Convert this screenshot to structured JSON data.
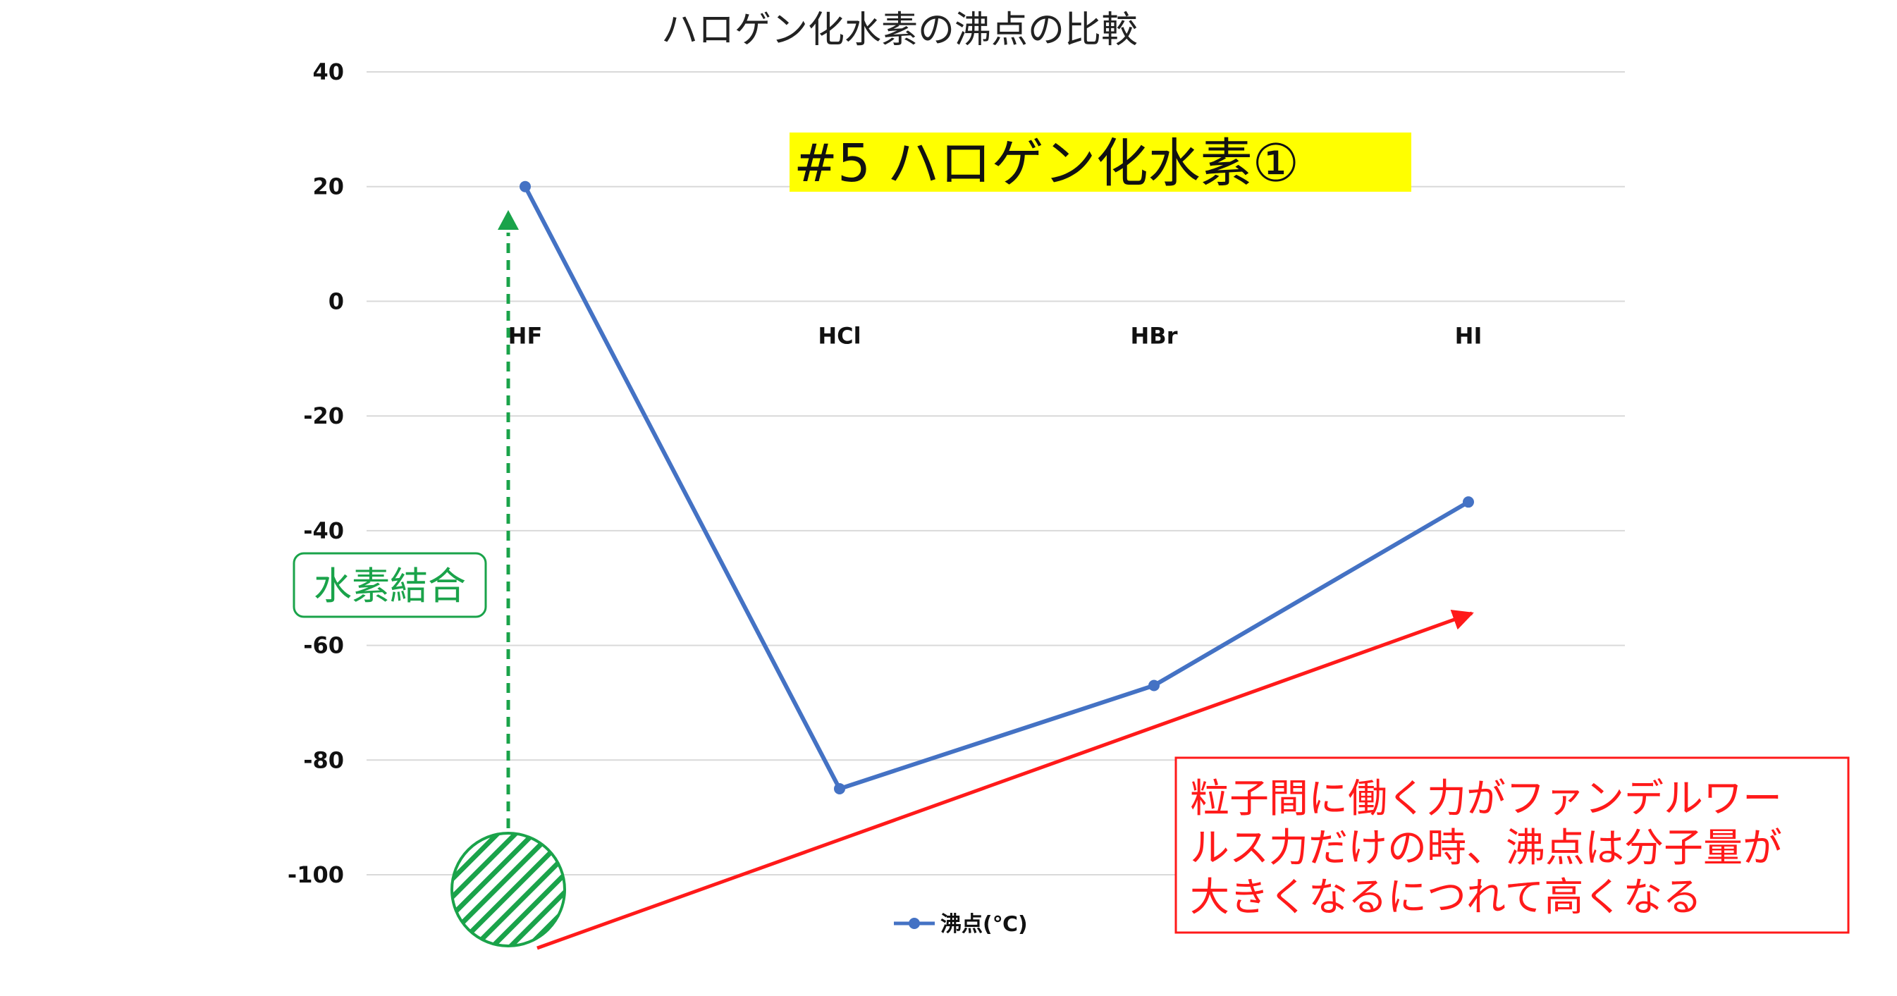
{
  "chart_data": {
    "type": "line",
    "title": "ハロゲン化水素の沸点の比較",
    "categories": [
      "HF",
      "HCl",
      "HBr",
      "HI"
    ],
    "series": [
      {
        "name": "沸点(℃)",
        "values": [
          20,
          -85,
          -67,
          -35
        ]
      }
    ],
    "ylim": [
      -100,
      40
    ],
    "yticks": [
      40,
      20,
      0,
      -20,
      -40,
      -60,
      -80,
      -100
    ],
    "grid": true,
    "legend": "bottom",
    "colors": {
      "series": "#4472c4",
      "grid": "#d9d9d9"
    }
  },
  "annotations": {
    "banner": {
      "text": "#5 ハロゲン化水素①",
      "background": "#ffff00"
    },
    "hydrogen_bond": {
      "label": "水素結合",
      "color": "#1aa34a"
    },
    "note": {
      "lines": [
        "粒子間に働く力がファンデルワー",
        "ルス力だけの時、沸点は分子量が",
        "大きくなるにつれて高くなる"
      ],
      "color": "#ff1a1a"
    }
  }
}
